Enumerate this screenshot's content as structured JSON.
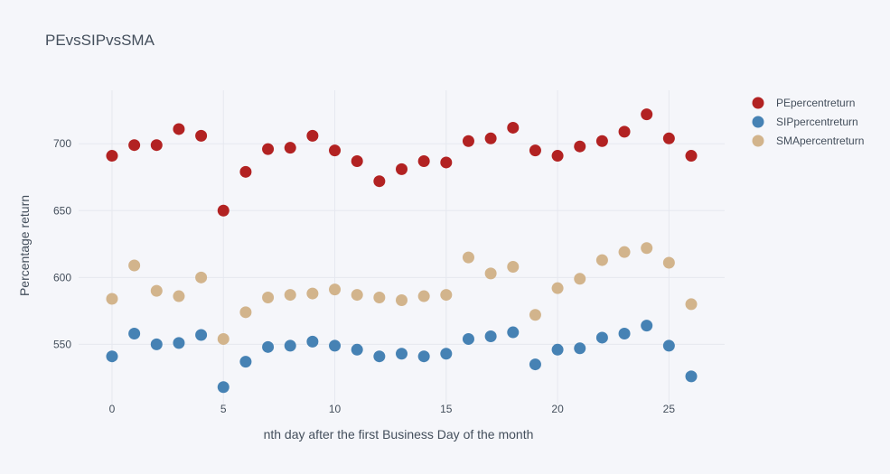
{
  "chart_data": {
    "type": "scatter",
    "title": "PEvsSIPvsSMA",
    "xlabel": "nth day after the first Business Day of the month",
    "ylabel": "Percentage return",
    "xlim": [
      -1.5,
      27.5
    ],
    "ylim": [
      505,
      740
    ],
    "x_ticks": [
      0,
      5,
      10,
      15,
      20,
      25
    ],
    "y_ticks": [
      550,
      600,
      650,
      700
    ],
    "grid": true,
    "legend_position": "top-right",
    "x": [
      0,
      1,
      2,
      3,
      4,
      5,
      6,
      7,
      8,
      9,
      10,
      11,
      12,
      13,
      14,
      15,
      16,
      17,
      18,
      19,
      20,
      21,
      22,
      23,
      24,
      25,
      26
    ],
    "series": [
      {
        "name": "PEpercentreturn",
        "color": "#b22222",
        "values": [
          691,
          699,
          699,
          711,
          706,
          650,
          679,
          696,
          697,
          706,
          695,
          687,
          672,
          681,
          687,
          686,
          702,
          704,
          712,
          695,
          691,
          698,
          702,
          709,
          722,
          704,
          691
        ]
      },
      {
        "name": "SIPpercentreturn",
        "color": "#4682b4",
        "values": [
          541,
          558,
          550,
          551,
          557,
          518,
          537,
          548,
          549,
          552,
          549,
          546,
          541,
          543,
          541,
          543,
          554,
          556,
          559,
          535,
          546,
          547,
          555,
          558,
          564,
          549,
          526
        ]
      },
      {
        "name": "SMApercentreturn",
        "color": "#d2b48c",
        "values": [
          584,
          609,
          590,
          586,
          600,
          554,
          574,
          585,
          587,
          588,
          591,
          587,
          585,
          583,
          586,
          587,
          615,
          603,
          608,
          572,
          592,
          599,
          613,
          619,
          622,
          611,
          580
        ]
      }
    ]
  }
}
